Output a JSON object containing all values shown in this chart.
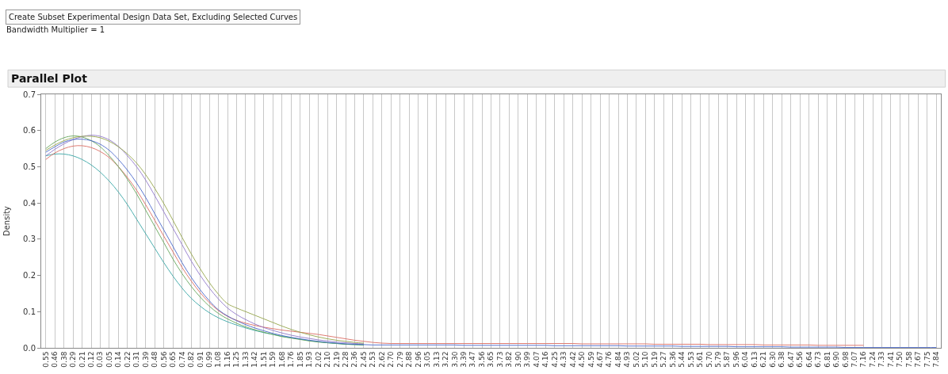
{
  "chart_data": {
    "type": "line",
    "title": "Parallel Plot",
    "ylabel": "Density",
    "annotations": [
      "Create Subset Experimental Design Data Set, Excluding Selected Curves",
      "Bandwidth Multiplier = 1"
    ],
    "categories": [
      "0.55",
      "0.46",
      "0.38",
      "0.29",
      "0.21",
      "0.12",
      "0.03",
      "0.05",
      "0.14",
      "0.22",
      "0.31",
      "0.39",
      "0.48",
      "0.56",
      "0.65",
      "0.74",
      "0.82",
      "0.91",
      "0.99",
      "1.08",
      "1.16",
      "1.25",
      "1.33",
      "1.42",
      "1.51",
      "1.59",
      "1.68",
      "1.76",
      "1.85",
      "1.93",
      "2.02",
      "2.10",
      "2.19",
      "2.28",
      "2.36",
      "2.45",
      "2.53",
      "2.62",
      "2.70",
      "2.79",
      "2.88",
      "2.96",
      "3.05",
      "3.13",
      "3.22",
      "3.30",
      "3.39",
      "3.47",
      "3.56",
      "3.65",
      "3.73",
      "3.82",
      "3.90",
      "3.99",
      "4.07",
      "4.16",
      "4.25",
      "4.33",
      "4.42",
      "4.50",
      "4.59",
      "4.67",
      "4.76",
      "4.84",
      "4.93",
      "5.02",
      "5.10",
      "5.19",
      "5.27",
      "5.36",
      "5.44",
      "5.53",
      "5.61",
      "5.70",
      "5.79",
      "5.87",
      "5.96",
      "6.04",
      "6.13",
      "6.21",
      "6.30",
      "6.38",
      "6.47",
      "6.56",
      "6.64",
      "6.73",
      "6.81",
      "6.90",
      "6.98",
      "7.07",
      "7.16",
      "7.24",
      "7.33",
      "7.41",
      "7.50",
      "7.58",
      "7.67",
      "7.75",
      "7.84"
    ],
    "series": [
      {
        "color": "#2ca0a0",
        "values": [
          0.53,
          0.535,
          0.535,
          0.53,
          0.52,
          0.505,
          0.485,
          0.46,
          0.43,
          0.395,
          0.355,
          0.315,
          0.275,
          0.235,
          0.198,
          0.165,
          0.137,
          0.115,
          0.097,
          0.083,
          0.072,
          0.063,
          0.055,
          0.048,
          0.042,
          0.037,
          0.032,
          0.028,
          0.024,
          0.02,
          0.017,
          0.014,
          0.012,
          0.01,
          0.009,
          0.008,
          null,
          null,
          null,
          null,
          null,
          null,
          null,
          null,
          null,
          null,
          null,
          null,
          null,
          null,
          null,
          null,
          null,
          null,
          null,
          null,
          null,
          null,
          null,
          null,
          null,
          null,
          null,
          null,
          null,
          null,
          null,
          null,
          null,
          null,
          null,
          null,
          null,
          null,
          null,
          null,
          null,
          null,
          null,
          null,
          null,
          null,
          null,
          null,
          null,
          null,
          null,
          null,
          null,
          null,
          null,
          null,
          null,
          null,
          null,
          null,
          null,
          null,
          null
        ]
      },
      {
        "color": "#d9645a",
        "values": [
          0.52,
          0.538,
          0.55,
          0.557,
          0.558,
          0.553,
          0.542,
          0.525,
          0.5,
          0.47,
          0.435,
          0.395,
          0.352,
          0.308,
          0.265,
          0.222,
          0.185,
          0.152,
          0.125,
          0.103,
          0.087,
          0.076,
          0.068,
          0.062,
          0.057,
          0.053,
          0.049,
          0.046,
          0.043,
          0.04,
          0.037,
          0.033,
          0.029,
          0.025,
          0.021,
          0.018,
          0.015,
          0.013,
          0.012,
          0.012,
          0.012,
          0.012,
          0.012,
          0.012,
          0.012,
          0.012,
          0.012,
          0.012,
          0.012,
          0.012,
          0.012,
          0.012,
          0.012,
          0.012,
          0.012,
          0.012,
          0.012,
          0.012,
          0.012,
          0.011,
          0.011,
          0.011,
          0.011,
          0.011,
          0.011,
          0.011,
          0.011,
          0.01,
          0.01,
          0.01,
          0.01,
          0.01,
          0.01,
          0.009,
          0.009,
          0.009,
          0.009,
          0.009,
          0.009,
          0.008,
          0.008,
          0.008,
          0.008,
          0.008,
          0.008,
          0.007,
          0.007,
          0.007,
          0.007,
          0.007,
          0.007,
          null,
          null,
          null,
          null,
          null,
          null,
          null,
          null
        ]
      },
      {
        "color": "#5aa050",
        "values": [
          0.55,
          0.568,
          0.58,
          0.585,
          0.582,
          0.572,
          0.555,
          0.53,
          0.5,
          0.465,
          0.425,
          0.38,
          0.335,
          0.29,
          0.245,
          0.205,
          0.17,
          0.14,
          0.115,
          0.095,
          0.08,
          0.068,
          0.058,
          0.05,
          0.043,
          0.037,
          0.031,
          0.027,
          0.023,
          0.019,
          0.016,
          0.014,
          0.012,
          0.01,
          0.009,
          0.008,
          null,
          null,
          null,
          null,
          null,
          null,
          null,
          null,
          null,
          null,
          null,
          null,
          null,
          null,
          null,
          null,
          null,
          null,
          null,
          null,
          null,
          null,
          null,
          null,
          null,
          null,
          null,
          null,
          null,
          null,
          null,
          null,
          null,
          null,
          null,
          null,
          null,
          null,
          null,
          null,
          null,
          null,
          null,
          null,
          null,
          null,
          null,
          null,
          null,
          null,
          null,
          null,
          null,
          null,
          null,
          null,
          null,
          null,
          null,
          null,
          null,
          null,
          null
        ]
      },
      {
        "color": "#8a70c8",
        "values": [
          0.53,
          0.548,
          0.563,
          0.575,
          0.583,
          0.587,
          0.584,
          0.574,
          0.556,
          0.53,
          0.5,
          0.463,
          0.42,
          0.375,
          0.33,
          0.285,
          0.24,
          0.2,
          0.165,
          0.135,
          0.11,
          0.092,
          0.078,
          0.066,
          0.056,
          0.048,
          0.041,
          0.035,
          0.03,
          0.026,
          0.022,
          0.019,
          0.016,
          0.014,
          0.012,
          0.011,
          null,
          null,
          null,
          null,
          null,
          null,
          null,
          null,
          null,
          null,
          null,
          null,
          null,
          null,
          null,
          null,
          null,
          null,
          null,
          null,
          null,
          null,
          null,
          null,
          null,
          null,
          null,
          null,
          null,
          null,
          null,
          null,
          null,
          null,
          null,
          null,
          null,
          null,
          null,
          null,
          null,
          null,
          null,
          null,
          null,
          null,
          null,
          null,
          null,
          null,
          null,
          null,
          null,
          null,
          null,
          null,
          null,
          null,
          null,
          null,
          null,
          null,
          null
        ]
      },
      {
        "color": "#8fa040",
        "values": [
          0.545,
          0.56,
          0.572,
          0.58,
          0.584,
          0.584,
          0.58,
          0.57,
          0.555,
          0.535,
          0.51,
          0.478,
          0.44,
          0.398,
          0.352,
          0.305,
          0.26,
          0.218,
          0.18,
          0.148,
          0.122,
          0.11,
          0.1,
          0.09,
          0.08,
          0.07,
          0.06,
          0.051,
          0.043,
          0.036,
          0.03,
          0.025,
          0.021,
          0.018,
          0.015,
          0.013,
          null,
          null,
          null,
          null,
          null,
          null,
          null,
          null,
          null,
          null,
          null,
          null,
          null,
          null,
          null,
          null,
          null,
          null,
          null,
          null,
          null,
          null,
          null,
          null,
          null,
          null,
          null,
          null,
          null,
          null,
          null,
          null,
          null,
          null,
          null,
          null,
          null,
          null,
          null,
          null,
          null,
          null,
          null,
          null,
          null,
          null,
          null,
          null,
          null,
          null,
          null,
          null,
          null,
          null,
          null,
          null,
          null,
          null,
          null,
          null,
          null,
          null,
          null
        ]
      },
      {
        "color": "#3f5fc8",
        "values": [
          0.54,
          0.555,
          0.568,
          0.575,
          0.576,
          0.572,
          0.562,
          0.545,
          0.52,
          0.49,
          0.455,
          0.415,
          0.37,
          0.325,
          0.28,
          0.235,
          0.195,
          0.16,
          0.13,
          0.105,
          0.088,
          0.075,
          0.064,
          0.055,
          0.047,
          0.04,
          0.034,
          0.029,
          0.025,
          0.021,
          0.018,
          0.015,
          0.013,
          0.011,
          0.01,
          0.009,
          0.008,
          0.008,
          0.008,
          0.008,
          0.008,
          0.008,
          0.008,
          0.008,
          0.008,
          0.008,
          0.007,
          0.007,
          0.007,
          0.007,
          0.007,
          0.007,
          0.007,
          0.007,
          0.007,
          0.007,
          0.006,
          0.006,
          0.006,
          0.006,
          0.006,
          0.006,
          0.006,
          0.006,
          0.005,
          0.005,
          0.005,
          0.005,
          0.005,
          0.005,
          0.004,
          0.004,
          0.004,
          0.004,
          0.004,
          0.004,
          0.003,
          0.003,
          0.003,
          0.003,
          0.003,
          0.003,
          0.002,
          0.002,
          0.002,
          0.002,
          0.002,
          0.002,
          0.001,
          0.001,
          0.001,
          0.001,
          0.001,
          0.001,
          0.001,
          0.001,
          0.001,
          0.001,
          0.001
        ]
      }
    ],
    "ylim": [
      0,
      0.7
    ],
    "yticks": [
      {
        "value": 0,
        "label": "0.0"
      },
      0.1,
      0.2,
      0.3,
      0.4,
      0.5,
      0.6,
      0.7
    ],
    "grid": "x",
    "line_style": "solid",
    "marker": "none"
  }
}
